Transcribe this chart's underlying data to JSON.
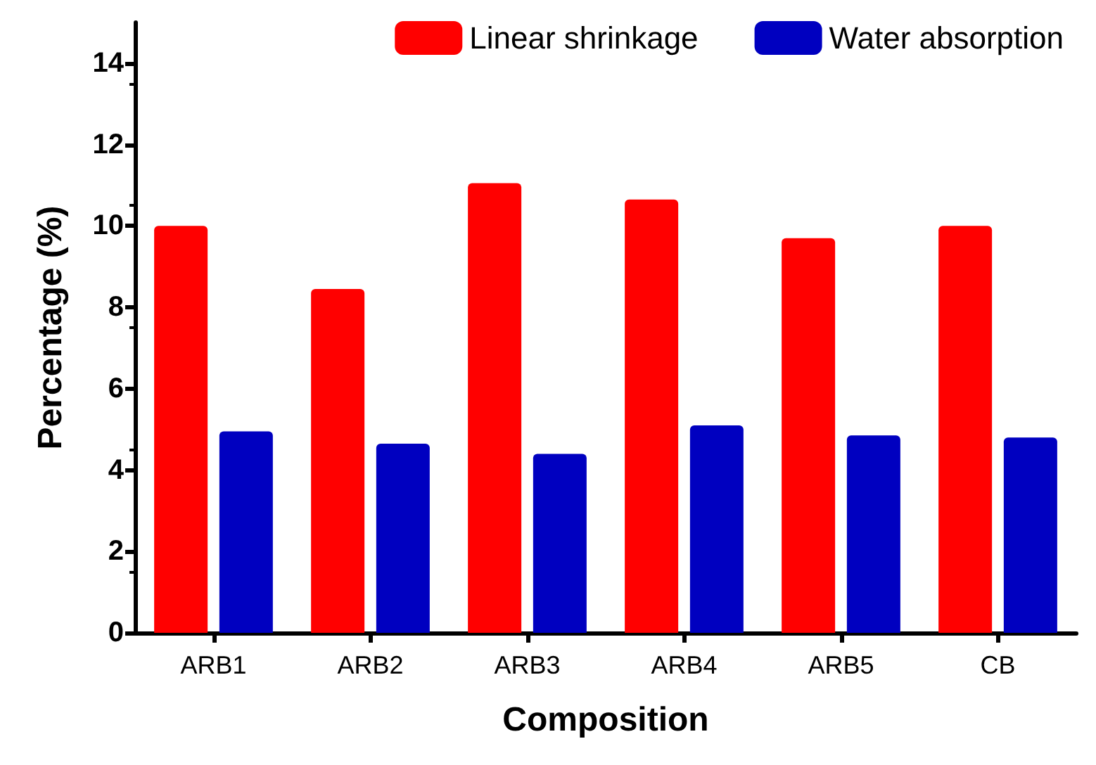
{
  "chart_data": {
    "type": "bar",
    "xlabel": "Composition",
    "ylabel": "Percentage (%)",
    "categories": [
      "ARB1",
      "ARB2",
      "ARB3",
      "ARB4",
      "ARB5",
      "CB"
    ],
    "series": [
      {
        "name": "Linear shrinkage",
        "color": "#ff0000",
        "values": [
          10.0,
          8.45,
          11.05,
          10.65,
          9.7,
          10.0
        ]
      },
      {
        "name": "Water absorption",
        "color": "#0000c0",
        "values": [
          4.95,
          4.65,
          4.4,
          5.1,
          4.85,
          4.8
        ]
      }
    ],
    "ylim": [
      0,
      15
    ],
    "yticks": [
      0,
      2,
      4,
      6,
      8,
      10,
      12,
      14
    ],
    "grid": false,
    "legend": "top right"
  }
}
